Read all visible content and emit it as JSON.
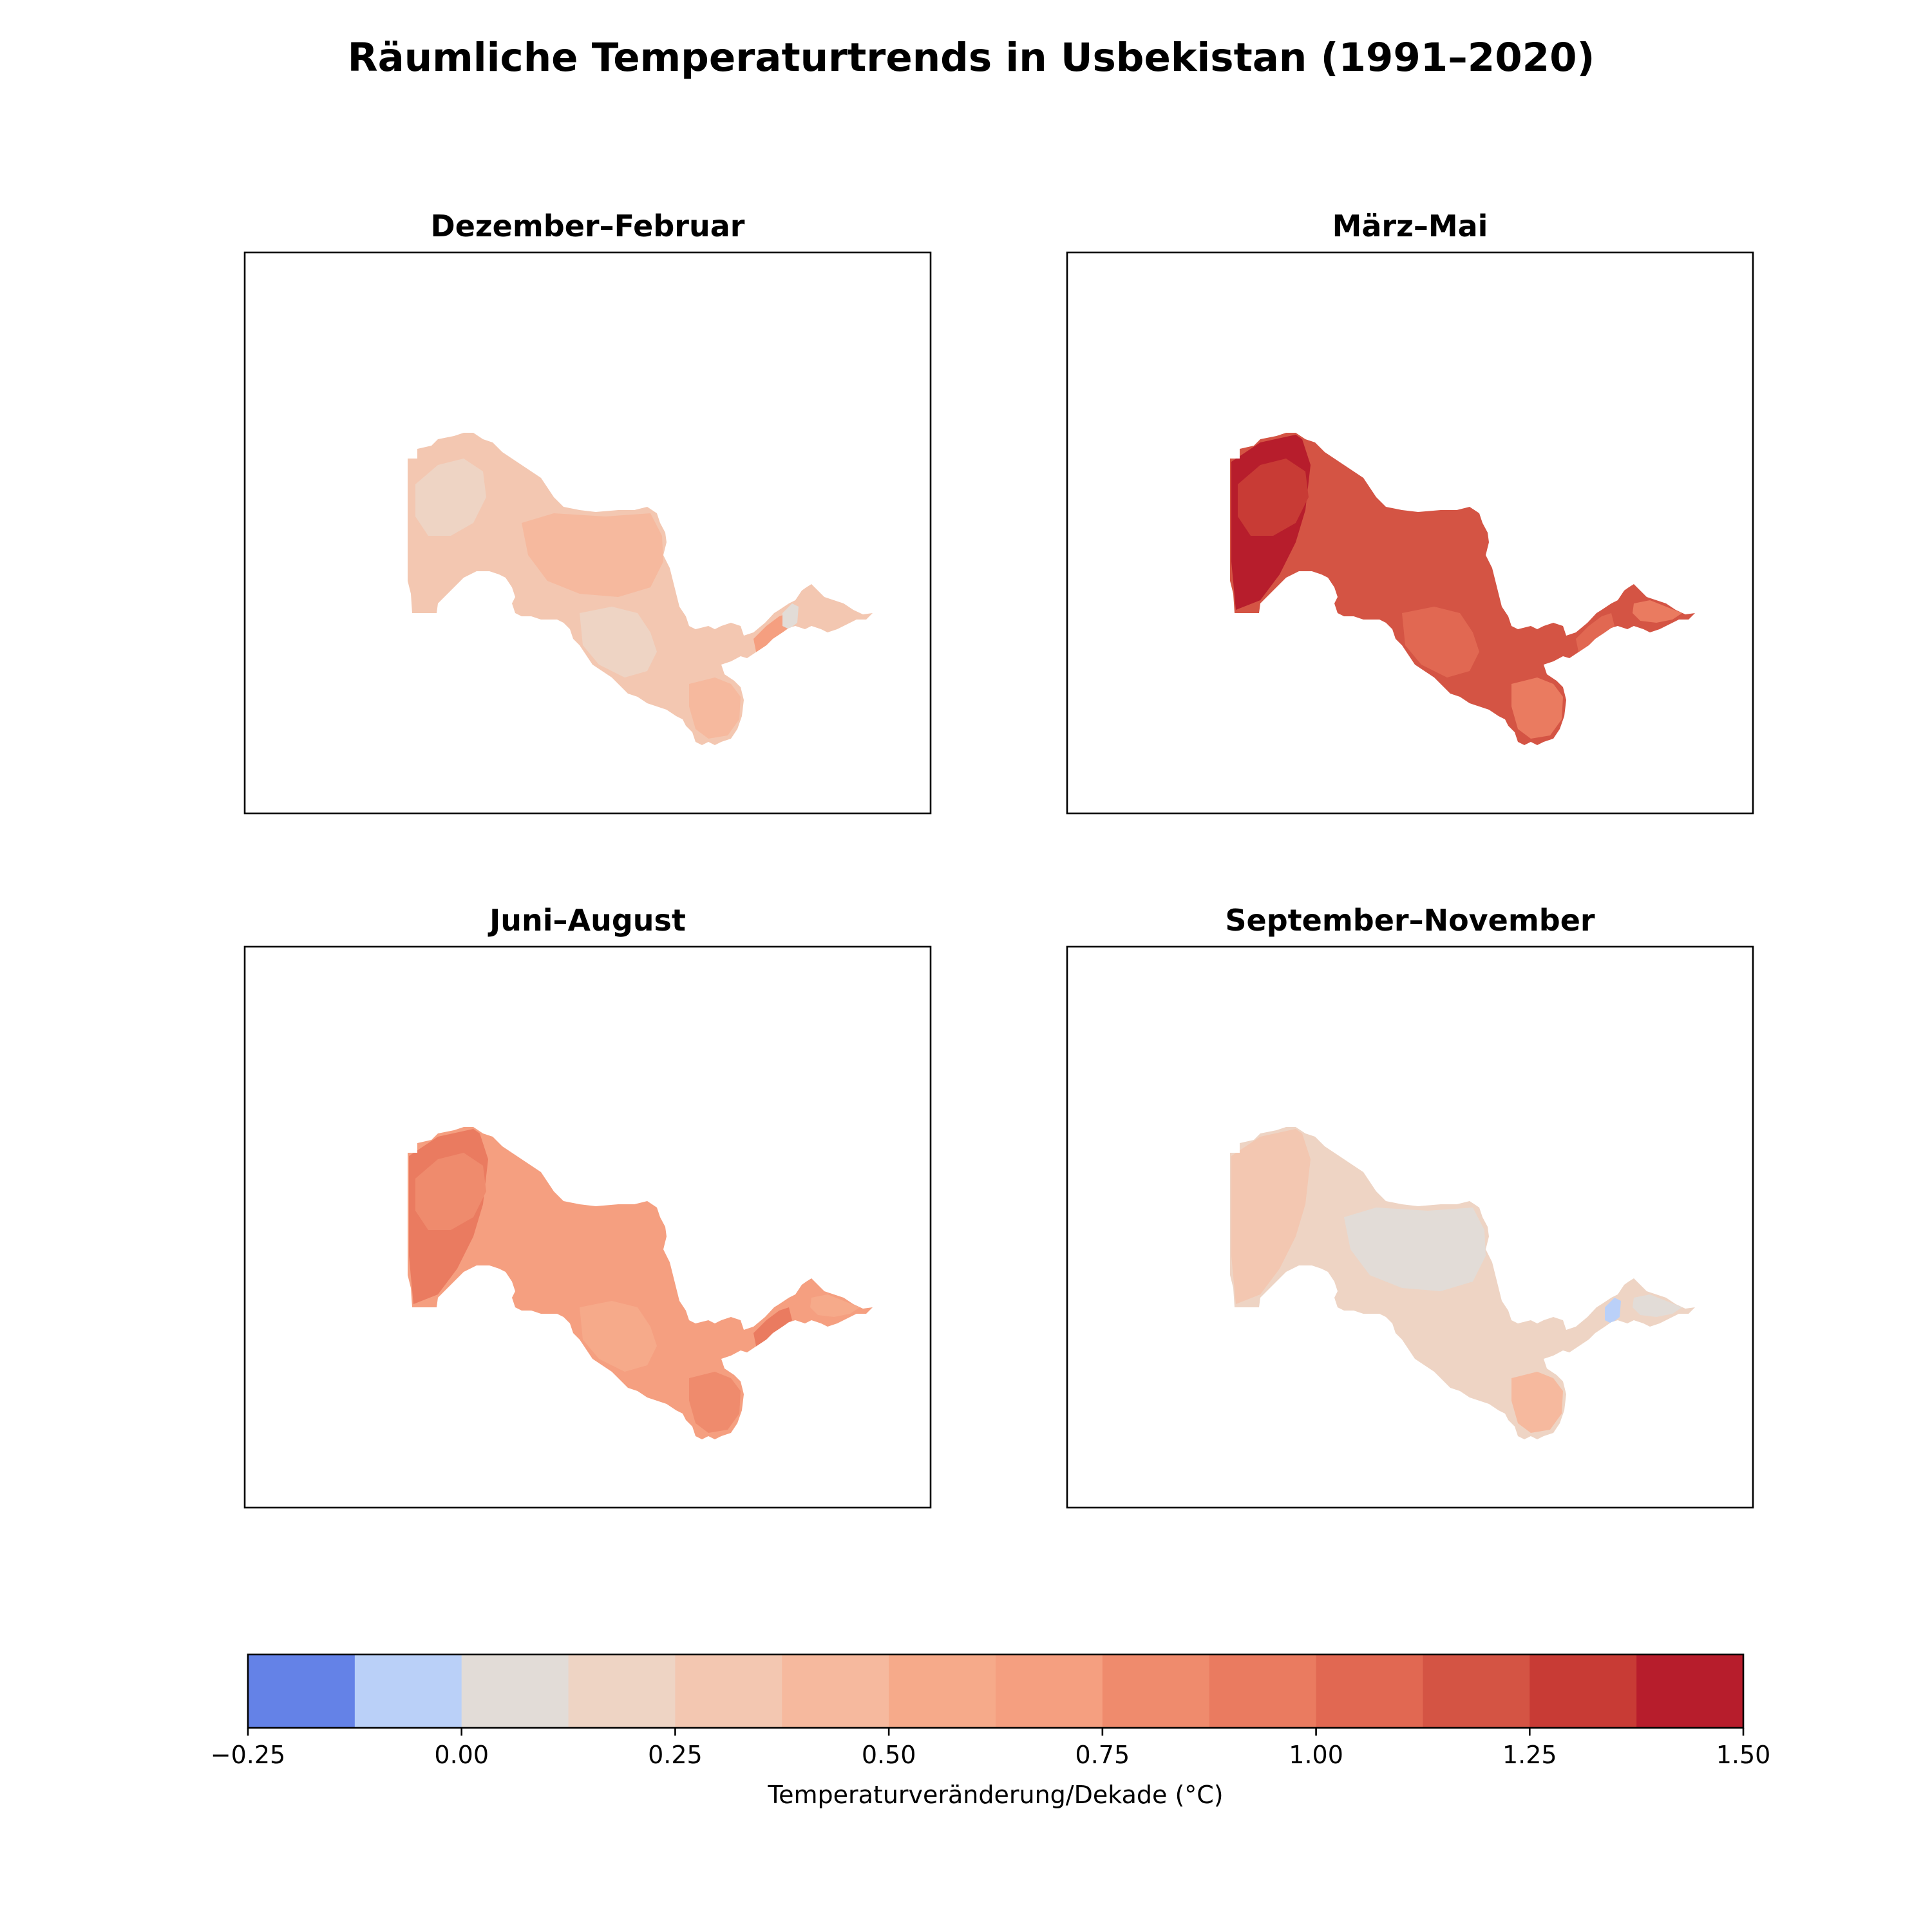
{
  "chart_data": {
    "type": "heatmap",
    "title": "Räumliche Temperaturtrends in Usbekistan (1991–2020)",
    "panels": [
      {
        "title": "Dezember–Februar",
        "base_value": 0.25,
        "patches": [
          {
            "value": 0.125,
            "shape": "west-core"
          },
          {
            "value": 0.375,
            "shape": "center"
          },
          {
            "value": 0.125,
            "shape": "south-center"
          },
          {
            "value": 0.625,
            "shape": "ferghana"
          },
          {
            "value": 0.375,
            "shape": "southeast"
          },
          {
            "value": 0.0,
            "shape": "east-spot"
          }
        ]
      },
      {
        "title": "März–Mai",
        "base_value": 1.125,
        "patches": [
          {
            "value": 1.375,
            "shape": "northwest"
          },
          {
            "value": 1.25,
            "shape": "west-core"
          },
          {
            "value": 1.0,
            "shape": "south-center"
          },
          {
            "value": 0.875,
            "shape": "southeast"
          },
          {
            "value": 1.0,
            "shape": "ferghana"
          },
          {
            "value": 0.875,
            "shape": "east-tip"
          }
        ]
      },
      {
        "title": "Juni–August",
        "base_value": 0.625,
        "patches": [
          {
            "value": 0.875,
            "shape": "northwest"
          },
          {
            "value": 0.75,
            "shape": "west-core"
          },
          {
            "value": 0.5,
            "shape": "south-center"
          },
          {
            "value": 0.875,
            "shape": "ferghana"
          },
          {
            "value": 0.75,
            "shape": "southeast"
          },
          {
            "value": 0.5,
            "shape": "east-tip"
          }
        ]
      },
      {
        "title": "September–November",
        "base_value": 0.125,
        "patches": [
          {
            "value": 0.25,
            "shape": "northwest"
          },
          {
            "value": 0.0,
            "shape": "center"
          },
          {
            "value": -0.125,
            "shape": "east-spot"
          },
          {
            "value": 0.375,
            "shape": "southeast"
          },
          {
            "value": 0.0,
            "shape": "east-tip"
          }
        ]
      }
    ],
    "colorbar": {
      "label": "Temperaturveränderung/Dekade (°C)",
      "range": [
        -0.25,
        1.5
      ],
      "boundaries": [
        -0.25,
        -0.125,
        0.0,
        0.125,
        0.25,
        0.375,
        0.5,
        0.625,
        0.75,
        0.875,
        1.0,
        1.125,
        1.25,
        1.375,
        1.5
      ],
      "colors": [
        "#6482e7",
        "#bad0f8",
        "#e2dcd7",
        "#eed4c4",
        "#f3c7b1",
        "#f6b99e",
        "#f6aa8a",
        "#f59f80",
        "#ef8b6d",
        "#ea7b60",
        "#e16852",
        "#d45444",
        "#c83b35",
        "#b71d2c"
      ],
      "ticks": [
        "−0.25",
        "0.00",
        "0.25",
        "0.50",
        "0.75",
        "1.00",
        "1.25",
        "1.50"
      ],
      "tick_values": [
        -0.25,
        0.0,
        0.25,
        0.5,
        0.75,
        1.0,
        1.25,
        1.5
      ]
    }
  }
}
